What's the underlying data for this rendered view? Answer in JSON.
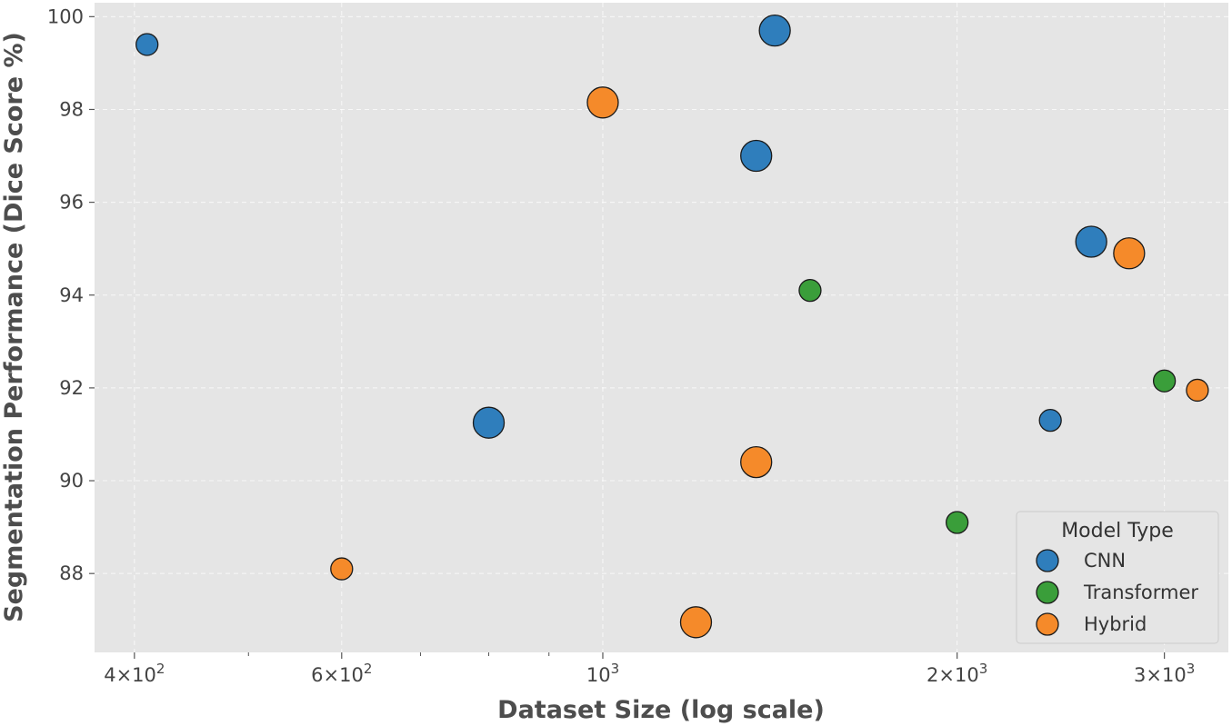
{
  "chart_data": {
    "type": "scatter",
    "title": "",
    "xlabel": "Dataset Size (log scale)",
    "ylabel": "Segmentation Performance (Dice Score %)",
    "xscale": "log",
    "xlim": [
      370,
      3400
    ],
    "ylim": [
      86.3,
      100.3
    ],
    "grid": true,
    "x_ticks": [
      {
        "value": 400,
        "mantissa": "4",
        "exponent": "2"
      },
      {
        "value": 600,
        "mantissa": "6",
        "exponent": "2"
      },
      {
        "value": 1000,
        "mantissa": "",
        "exponent": "3"
      },
      {
        "value": 2000,
        "mantissa": "2",
        "exponent": "3"
      },
      {
        "value": 3000,
        "mantissa": "3",
        "exponent": "3"
      }
    ],
    "y_ticks": [
      "88",
      "90",
      "92",
      "94",
      "96",
      "98",
      "100"
    ],
    "legend": {
      "title": "Model Type",
      "position": "lower-right"
    },
    "series": [
      {
        "name": "CNN",
        "color": "#2f7ebc",
        "points": [
          {
            "x": 410,
            "y": 99.4,
            "size": "small"
          },
          {
            "x": 800,
            "y": 91.25,
            "size": "large"
          },
          {
            "x": 1350,
            "y": 97.0,
            "size": "large"
          },
          {
            "x": 1400,
            "y": 99.7,
            "size": "large"
          },
          {
            "x": 2400,
            "y": 91.3,
            "size": "small"
          },
          {
            "x": 2600,
            "y": 95.15,
            "size": "large"
          }
        ]
      },
      {
        "name": "Transformer",
        "color": "#3a9e3a",
        "points": [
          {
            "x": 1500,
            "y": 94.1,
            "size": "small"
          },
          {
            "x": 2000,
            "y": 89.1,
            "size": "small"
          },
          {
            "x": 3000,
            "y": 92.15,
            "size": "small"
          }
        ]
      },
      {
        "name": "Hybrid",
        "color": "#f58a2a",
        "points": [
          {
            "x": 600,
            "y": 88.1,
            "size": "small"
          },
          {
            "x": 1000,
            "y": 98.15,
            "size": "large"
          },
          {
            "x": 1200,
            "y": 86.95,
            "size": "large"
          },
          {
            "x": 1350,
            "y": 90.4,
            "size": "large"
          },
          {
            "x": 2800,
            "y": 94.9,
            "size": "large"
          },
          {
            "x": 3200,
            "y": 91.95,
            "size": "small"
          }
        ]
      }
    ]
  }
}
